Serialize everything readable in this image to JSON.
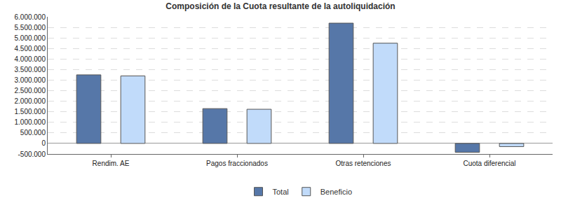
{
  "chart_data": {
    "type": "bar",
    "title": "Composición de la Cuota resultante de la autoliquidación",
    "categories": [
      "Rendim. AE",
      "Pagos fraccionados",
      "Otras retenciones",
      "Cuota diferencial"
    ],
    "series": [
      {
        "name": "Total",
        "color": "#5677a8",
        "values": [
          3250000,
          1650000,
          5700000,
          -420000
        ]
      },
      {
        "name": "Beneficio",
        "color": "#c1dbfa",
        "values": [
          3200000,
          1620000,
          4750000,
          -150000
        ]
      }
    ],
    "ylim": [
      -500000,
      6000000
    ],
    "yticks": [
      {
        "value": -500000,
        "label": "-500.000"
      },
      0,
      {
        "value": 500000,
        "label": "500.000"
      },
      {
        "value": 1000000,
        "label": "1.000.000"
      },
      {
        "value": 1500000,
        "label": "1.500.000"
      },
      {
        "value": 2000000,
        "label": "2.000.000"
      },
      {
        "value": 2500000,
        "label": "2.500.000"
      },
      {
        "value": 3000000,
        "label": "3.000.000"
      },
      {
        "value": 3500000,
        "label": "3.500.000"
      },
      {
        "value": 4000000,
        "label": "4.000.000"
      },
      {
        "value": 4500000,
        "label": "4.500.000"
      },
      {
        "value": 5000000,
        "label": "5.000.000"
      },
      {
        "value": 5500000,
        "label": "5.500.000"
      },
      {
        "value": 6000000,
        "label": "6.000.000"
      }
    ],
    "grid": true,
    "legend": "bottom"
  }
}
